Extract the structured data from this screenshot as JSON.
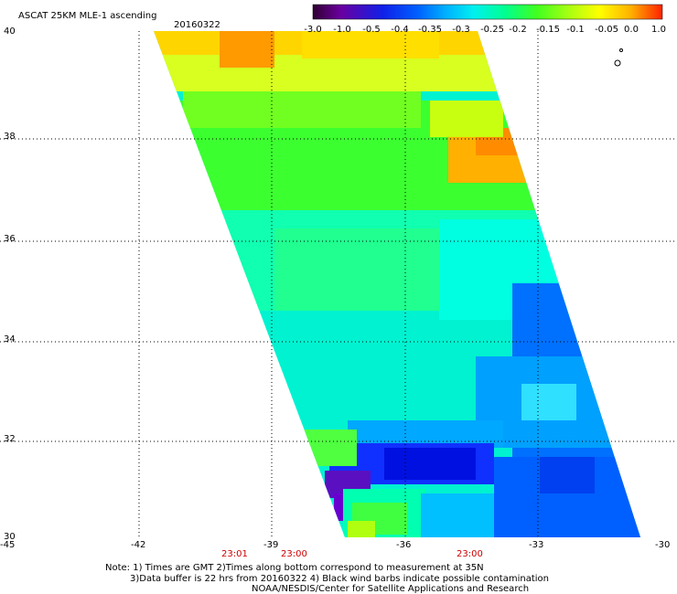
{
  "header": {
    "title": "ASCAT 25KM MLE-1 ascending",
    "date": "20160322"
  },
  "colorbar": {
    "labels": [
      "-3.0",
      "-1.0",
      "-0.5",
      "-0.4",
      "-0.35",
      "-0.3",
      "-0.25",
      "-0.2",
      "-0.15",
      "-0.1",
      "-0.05",
      "0.0",
      "1.0"
    ],
    "colors": [
      "#300030",
      "#6a00a0",
      "#1020e8",
      "#0050ff",
      "#0090ff",
      "#00d0ff",
      "#00f0e0",
      "#00ff90",
      "#40ff20",
      "#b0ff10",
      "#ffff00",
      "#ffb000",
      "#ff2000"
    ]
  },
  "axes": {
    "lat_labels": [
      "40",
      "38",
      "36",
      "34",
      "32",
      "30"
    ],
    "lon_labels": [
      "-45",
      "-42",
      "-39",
      "-36",
      "-33",
      "-30"
    ]
  },
  "time_labels": [
    "23:01",
    "23:00",
    "23:00"
  ],
  "notes": [
    "Note: 1) Times are GMT 2)Times along bottom correspond to measurement at 35N",
    "3)Data buffer is 22 hrs from 20160322 4) Black wind barbs indicate possible contamination",
    "NOAA/NESDIS/Center for Satellite Applications and Research"
  ],
  "colors": {
    "background": "#ffffff",
    "time_label": "#cc0000"
  }
}
